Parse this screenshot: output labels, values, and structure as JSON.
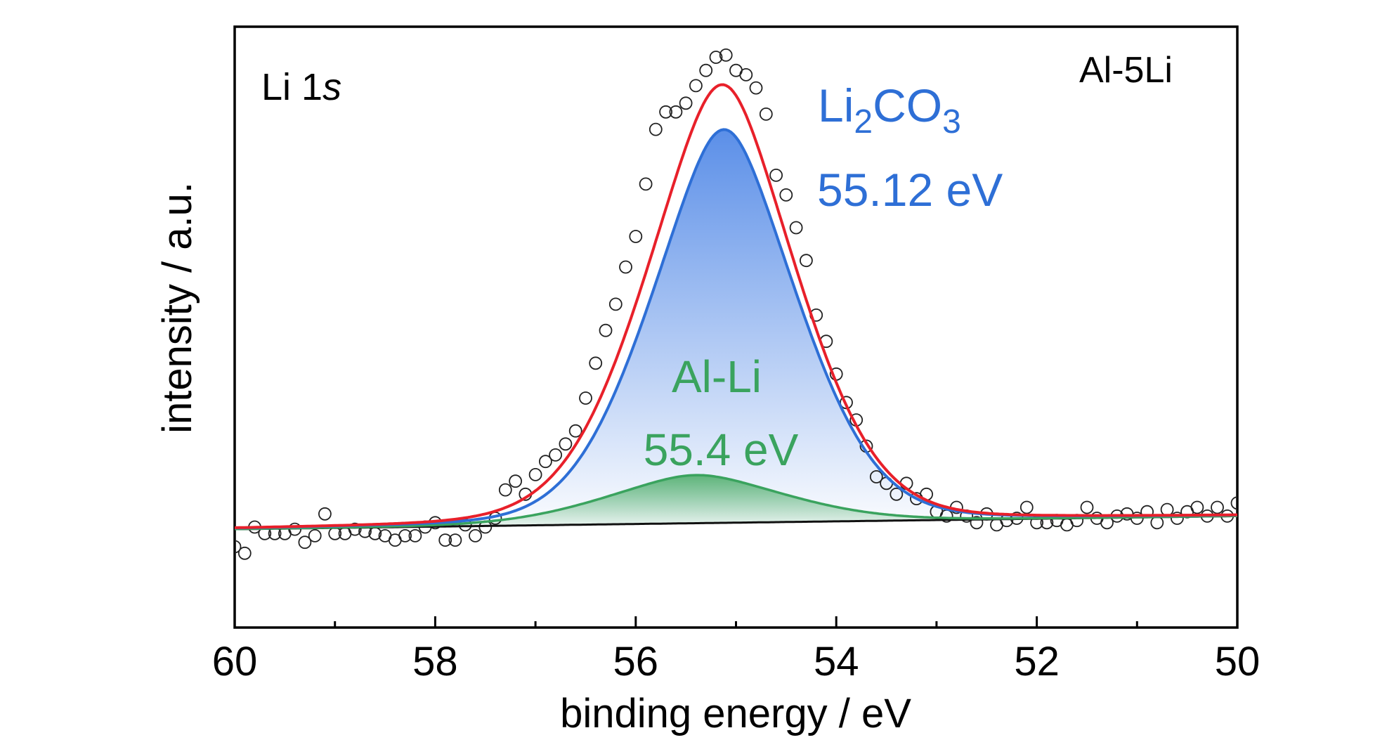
{
  "chart_data": {
    "type": "line",
    "xlabel": "binding energy / eV",
    "ylabel": "intensity / a.u.",
    "xlim": [
      60,
      50
    ],
    "x_reversed": true,
    "ylim": [
      -0.45,
      2.3
    ],
    "xticks": [
      60,
      58,
      56,
      54,
      52,
      50
    ],
    "xticks_minor": [
      59,
      57,
      55,
      53,
      51
    ],
    "yticks_shown": false,
    "grid": false,
    "labels": {
      "element": "Li 1",
      "element_orbital": "s",
      "sample": "Al-5Li"
    },
    "annotations": {
      "li2co3_text": "Li",
      "li2co3_sub1": "2",
      "li2co3_mid": "CO",
      "li2co3_sub2": "3",
      "li2co3_energy": "55.12 eV",
      "alli_name": "Al-Li",
      "alli_energy": "55.4 eV"
    },
    "colors": {
      "envelope": "#e8202a",
      "li2co3": "#2e6fd6",
      "li2co3_fill_top": "#5b8fe8",
      "alli": "#3aa35e",
      "alli_fill_top": "#4fae6b",
      "baseline": "#111111",
      "markers": "#222222"
    },
    "baseline": {
      "x": [
        60,
        50
      ],
      "y": [
        0,
        0.06
      ]
    },
    "components": [
      {
        "name": "Li2CO3",
        "center": 55.12,
        "amplitude": 1.8,
        "width": 0.78,
        "shape": "voigt"
      },
      {
        "name": "Al-Li",
        "center": 55.4,
        "amplitude": 0.22,
        "width": 0.95,
        "shape": "voigt"
      }
    ],
    "data_points": [
      [
        60.0,
        -0.08
      ],
      [
        59.9,
        -0.11
      ],
      [
        59.8,
        0.01
      ],
      [
        59.7,
        -0.02
      ],
      [
        59.6,
        -0.02
      ],
      [
        59.5,
        -0.02
      ],
      [
        59.4,
        0.0
      ],
      [
        59.3,
        -0.06
      ],
      [
        59.2,
        -0.03
      ],
      [
        59.1,
        0.07
      ],
      [
        59.0,
        -0.02
      ],
      [
        58.9,
        -0.02
      ],
      [
        58.8,
        0.0
      ],
      [
        58.7,
        -0.01
      ],
      [
        58.6,
        -0.02
      ],
      [
        58.5,
        -0.03
      ],
      [
        58.4,
        -0.05
      ],
      [
        58.3,
        -0.03
      ],
      [
        58.2,
        -0.03
      ],
      [
        58.1,
        0.01
      ],
      [
        58.0,
        0.03
      ],
      [
        57.9,
        -0.05
      ],
      [
        57.8,
        -0.05
      ],
      [
        57.7,
        0.02
      ],
      [
        57.6,
        -0.03
      ],
      [
        57.5,
        0.01
      ],
      [
        57.4,
        0.05
      ],
      [
        57.3,
        0.18
      ],
      [
        57.2,
        0.22
      ],
      [
        57.1,
        0.16
      ],
      [
        57.0,
        0.25
      ],
      [
        56.9,
        0.31
      ],
      [
        56.8,
        0.34
      ],
      [
        56.7,
        0.39
      ],
      [
        56.6,
        0.45
      ],
      [
        56.5,
        0.6
      ],
      [
        56.4,
        0.76
      ],
      [
        56.3,
        0.91
      ],
      [
        56.2,
        1.03
      ],
      [
        56.1,
        1.2
      ],
      [
        56.0,
        1.34
      ],
      [
        55.9,
        1.58
      ],
      [
        55.8,
        1.83
      ],
      [
        55.7,
        1.91
      ],
      [
        55.6,
        1.91
      ],
      [
        55.5,
        1.95
      ],
      [
        55.4,
        2.03
      ],
      [
        55.3,
        2.1
      ],
      [
        55.2,
        2.16
      ],
      [
        55.1,
        2.17
      ],
      [
        55.0,
        2.1
      ],
      [
        54.9,
        2.08
      ],
      [
        54.8,
        2.02
      ],
      [
        54.7,
        1.9
      ],
      [
        54.6,
        1.62
      ],
      [
        54.5,
        1.53
      ],
      [
        54.4,
        1.38
      ],
      [
        54.3,
        1.23
      ],
      [
        54.2,
        0.98
      ],
      [
        54.1,
        0.86
      ],
      [
        54.0,
        0.71
      ],
      [
        53.9,
        0.58
      ],
      [
        53.8,
        0.5
      ],
      [
        53.7,
        0.38
      ],
      [
        53.6,
        0.24
      ],
      [
        53.5,
        0.21
      ],
      [
        53.4,
        0.16
      ],
      [
        53.3,
        0.21
      ],
      [
        53.2,
        0.14
      ],
      [
        53.1,
        0.16
      ],
      [
        53.0,
        0.08
      ],
      [
        52.9,
        0.06
      ],
      [
        52.8,
        0.1
      ],
      [
        52.7,
        0.06
      ],
      [
        52.6,
        0.03
      ],
      [
        52.5,
        0.07
      ],
      [
        52.4,
        0.02
      ],
      [
        52.3,
        0.04
      ],
      [
        52.2,
        0.05
      ],
      [
        52.1,
        0.1
      ],
      [
        52.0,
        0.03
      ],
      [
        51.9,
        0.03
      ],
      [
        51.8,
        0.04
      ],
      [
        51.7,
        0.02
      ],
      [
        51.6,
        0.04
      ],
      [
        51.5,
        0.1
      ],
      [
        51.4,
        0.05
      ],
      [
        51.3,
        0.03
      ],
      [
        51.2,
        0.06
      ],
      [
        51.1,
        0.07
      ],
      [
        51.0,
        0.05
      ],
      [
        50.9,
        0.08
      ],
      [
        50.8,
        0.03
      ],
      [
        50.7,
        0.09
      ],
      [
        50.6,
        0.05
      ],
      [
        50.5,
        0.08
      ],
      [
        50.4,
        0.1
      ],
      [
        50.3,
        0.06
      ],
      [
        50.2,
        0.1
      ],
      [
        50.1,
        0.06
      ],
      [
        50.0,
        0.12
      ]
    ]
  }
}
